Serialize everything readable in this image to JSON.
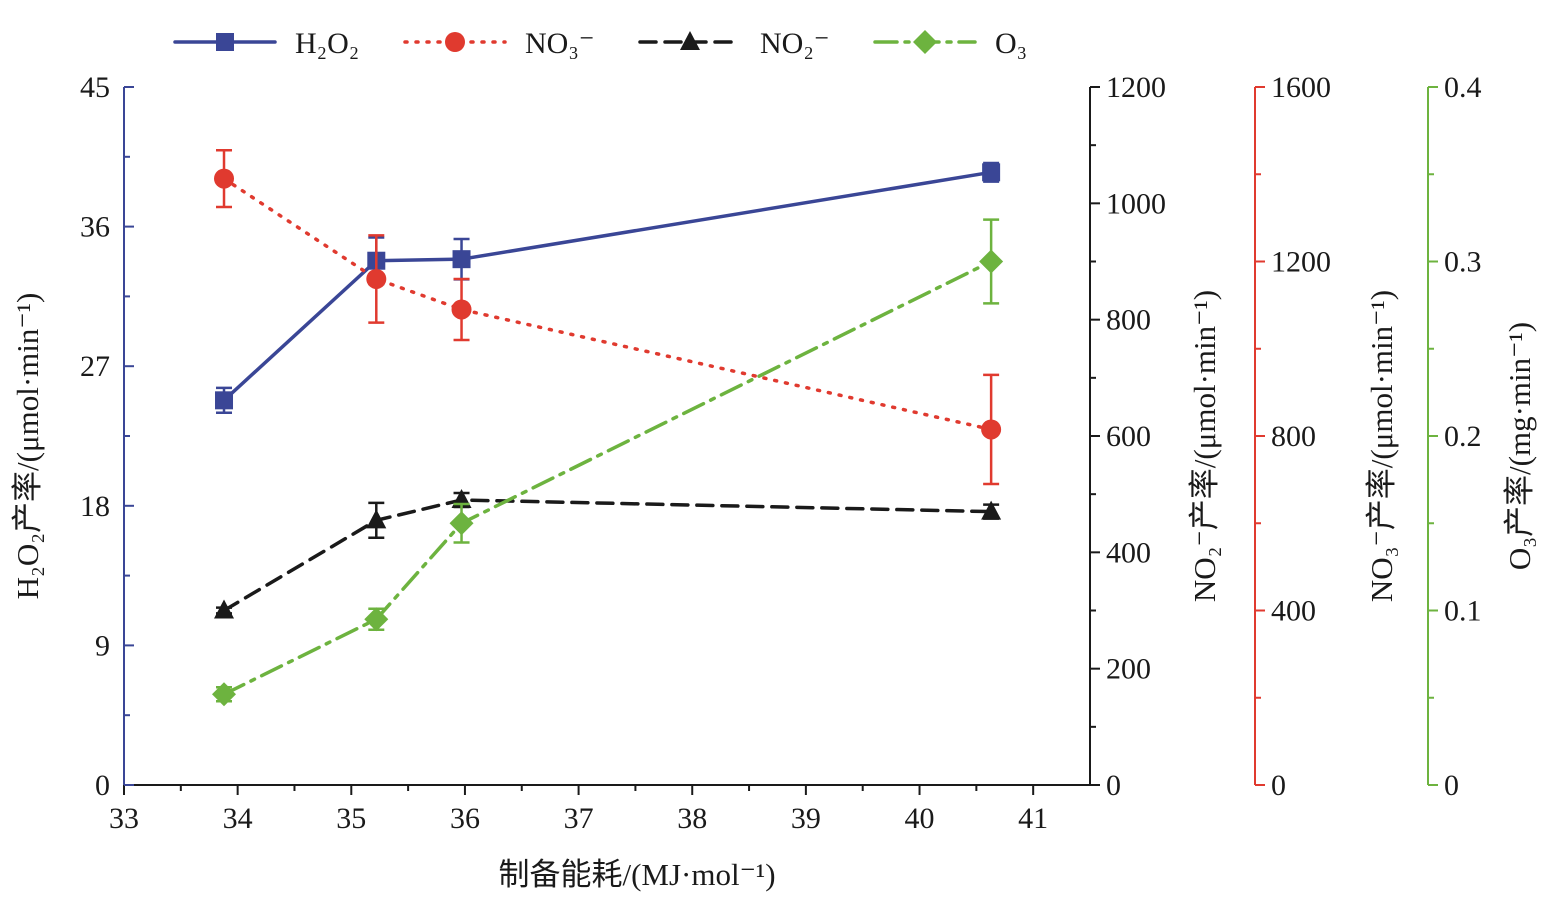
{
  "chart_data": {
    "type": "line",
    "xlabel": "制备能耗/(MJ·mol⁻¹)",
    "xlim": [
      33,
      41.5
    ],
    "x_ticks": [
      "33",
      "34",
      "35",
      "36",
      "37",
      "38",
      "39",
      "40",
      "41"
    ],
    "axes": [
      {
        "id": "h2o2",
        "title": "H₂O₂产率/(μmol·min⁻¹)",
        "range": [
          0,
          45
        ],
        "ticks": [
          "0",
          "9",
          "18",
          "27",
          "36",
          "45"
        ],
        "color": "#3a4696"
      },
      {
        "id": "no2",
        "title": "NO₂⁻产率/(μmol·min⁻¹)",
        "range": [
          0,
          1200
        ],
        "ticks": [
          "0",
          "200",
          "400",
          "600",
          "800",
          "1000",
          "1200"
        ],
        "color": "#1a1a1a"
      },
      {
        "id": "no3",
        "title": "NO₃⁻产率/(μmol·min⁻¹)",
        "range": [
          0,
          1600
        ],
        "ticks": [
          "0",
          "400",
          "800",
          "1200",
          "1600"
        ],
        "color": "#e03a2f"
      },
      {
        "id": "o3",
        "title": "O₃产率/(mg·min⁻¹)",
        "range": [
          0,
          0.4
        ],
        "ticks": [
          "0",
          "0.1",
          "0.2",
          "0.3",
          "0.4"
        ],
        "color": "#6db33f"
      }
    ],
    "series": [
      {
        "name": "H₂O₂",
        "axis": "h2o2",
        "color": "#3a4696",
        "marker": "square",
        "dash": "",
        "x": [
          33.88,
          35.22,
          35.97,
          40.63
        ],
        "values": [
          24.8,
          33.8,
          33.9,
          39.5
        ],
        "errors": [
          0.8,
          1.5,
          1.3,
          0.6
        ]
      },
      {
        "name": "NO₃⁻",
        "axis": "no3",
        "color": "#e03a2f",
        "marker": "circle",
        "dash": "2,9",
        "x": [
          33.88,
          35.22,
          35.97,
          40.63
        ],
        "values": [
          1390,
          1160,
          1090,
          815
        ],
        "errors": [
          65,
          100,
          70,
          125
        ]
      },
      {
        "name": "NO₂⁻",
        "axis": "no2",
        "color": "#1a1a1a",
        "marker": "triangle",
        "dash": "16,9",
        "x": [
          33.88,
          35.22,
          35.97,
          40.63
        ],
        "values": [
          300,
          455,
          490,
          470
        ],
        "errors": [
          5,
          30,
          12,
          12
        ]
      },
      {
        "name": "O₃",
        "axis": "o3",
        "color": "#6db33f",
        "marker": "diamond",
        "dash": "22,8,4,8",
        "x": [
          33.88,
          35.22,
          35.97,
          40.63
        ],
        "values": [
          0.052,
          0.095,
          0.15,
          0.3
        ],
        "errors": [
          0.004,
          0.006,
          0.011,
          0.024
        ]
      }
    ],
    "legend": {
      "placement": "top"
    }
  }
}
